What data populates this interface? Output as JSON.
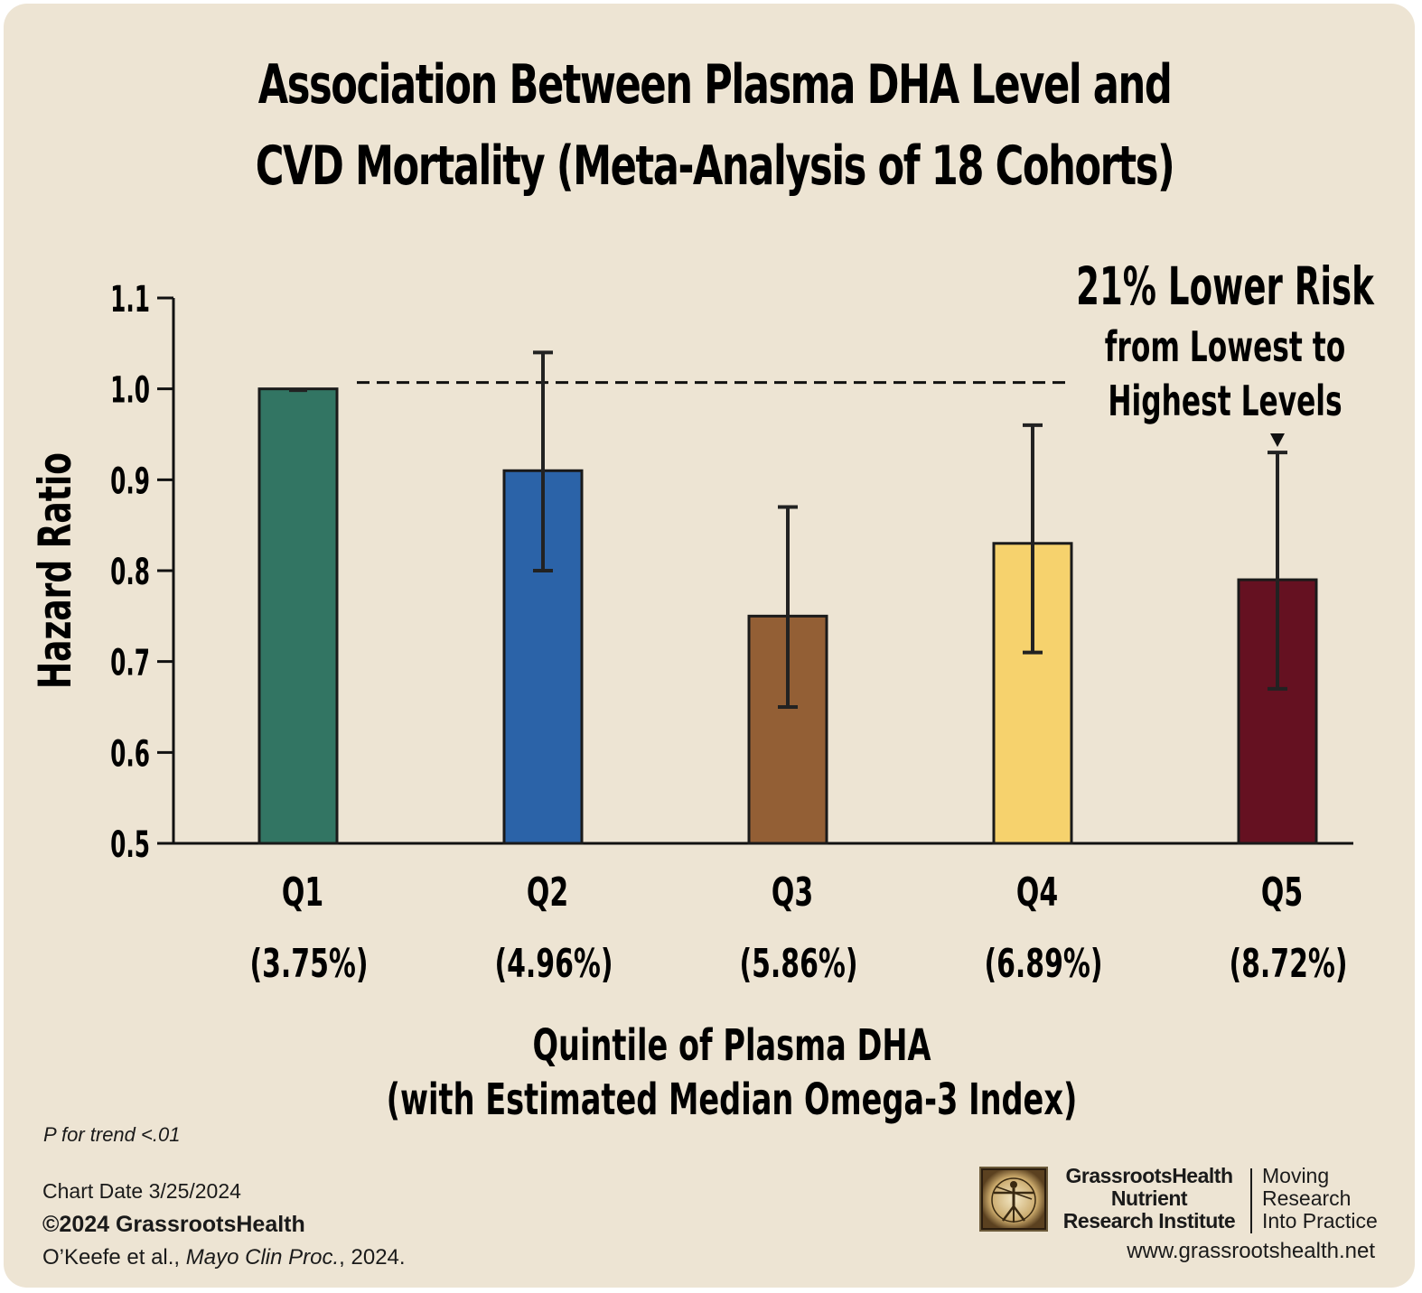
{
  "chart_data": {
    "type": "bar",
    "title_lines": [
      "Association Between Plasma DHA Level and",
      "CVD Mortality (Meta-Analysis of 18 Cohorts)"
    ],
    "ylabel": "Hazard Ratio",
    "xlabel_lines": [
      "Quintile of Plasma DHA",
      "(with Estimated Median Omega-3 Index)"
    ],
    "ylim": [
      0.5,
      1.1
    ],
    "yticks": [
      "0.5",
      "0.6",
      "0.7",
      "0.8",
      "0.9",
      "1.0",
      "1.1"
    ],
    "ytick_values": [
      0.5,
      0.6,
      0.7,
      0.8,
      0.9,
      1.0,
      1.1
    ],
    "categories": [
      "Q1",
      "Q2",
      "Q3",
      "Q4",
      "Q5"
    ],
    "category_sublabels": [
      "(3.75%)",
      "(4.96%)",
      "(5.86%)",
      "(6.89%)",
      "(8.72%)"
    ],
    "values": [
      1.0,
      0.91,
      0.75,
      0.83,
      0.79
    ],
    "ci_low": [
      null,
      0.8,
      0.65,
      0.71,
      0.67
    ],
    "ci_high": [
      null,
      1.04,
      0.87,
      0.96,
      0.93
    ],
    "bar_colors": [
      "#327563",
      "#2b63a8",
      "#935f35",
      "#f6d26d",
      "#651121"
    ],
    "reference_line": 1.0,
    "annotation_lines": [
      "21% Lower Risk",
      "from Lowest to",
      "Highest Levels"
    ],
    "grid": false
  },
  "footer": {
    "p_trend": "P for trend <.01",
    "chart_date": "Chart Date 3/25/2024",
    "copyright": "©2024 GrassrootsHealth",
    "citation_authors": "O’Keefe et al., ",
    "citation_journal": "Mayo Clin Proc.",
    "citation_year": ", 2024."
  },
  "org": {
    "name_lines": [
      "GrassrootsHealth",
      "Nutrient",
      "Research Institute"
    ],
    "tagline_lines": [
      "Moving",
      "Research",
      "Into Practice"
    ],
    "website": "www.grassrootshealth.net",
    "logo_icon": "vitruvian-man-icon"
  }
}
